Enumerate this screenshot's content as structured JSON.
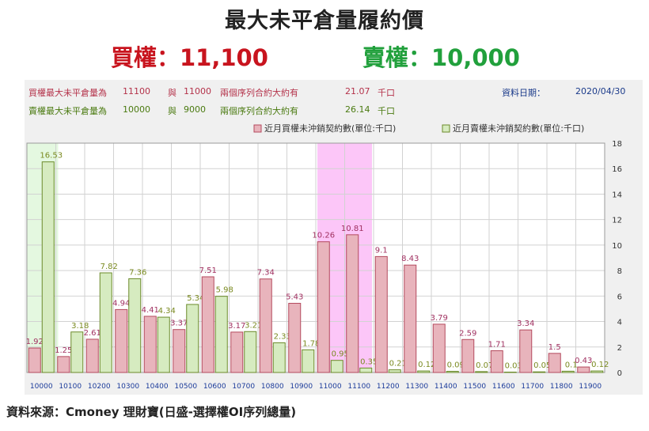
{
  "title": "最大未平倉量履約價",
  "call_max": "買權：11,100",
  "put_max": "賣權：10,000",
  "info": {
    "call_line": {
      "label": "買權最大未平倉量為",
      "strike1": "11100",
      "connector": "與",
      "strike2": "11000",
      "desc": "兩個序列合約大約有",
      "amount": "21.07",
      "unit": "千口"
    },
    "put_line": {
      "label": "賣權最大未平倉量為",
      "strike1": "10000",
      "connector": "與",
      "strike2": "9000",
      "desc": "兩個序列合約大約有",
      "amount": "26.14",
      "unit": "千口"
    },
    "date_label": "資料日期：",
    "date_value": "2020/04/30"
  },
  "source": "資料來源：Cmoney 理財寶(日盛-選擇權OI序列總量)",
  "colors": {
    "call_bar": "#e8b4bc",
    "call_stroke": "#b44a5e",
    "put_bar": "#d6ebc0",
    "put_stroke": "#6b8a2a",
    "call_label": "#a03060",
    "put_label": "#7a8a20",
    "highlight_green": "#e4f8e0",
    "highlight_pink": "#fcc6f8",
    "axis_label": "#1a3a9a"
  },
  "chart_data": {
    "type": "bar",
    "categories": [
      "10000",
      "10100",
      "10200",
      "10300",
      "10400",
      "10500",
      "10600",
      "10700",
      "10800",
      "10900",
      "11000",
      "11100",
      "11200",
      "11300",
      "11400",
      "11500",
      "11600",
      "11700",
      "11800",
      "11900"
    ],
    "series": [
      {
        "name": "近月買權未沖銷契約數(單位:千口)",
        "values": [
          1.92,
          1.25,
          2.61,
          4.94,
          4.41,
          3.37,
          7.51,
          3.17,
          7.34,
          5.43,
          10.26,
          10.81,
          9.1,
          8.43,
          3.79,
          2.59,
          1.71,
          3.34,
          1.5,
          0.43
        ],
        "labels": [
          "1.92",
          "1.25",
          "2.61",
          "4.94",
          "4.41",
          "3.37",
          "7.51",
          "3.17",
          "7.34",
          "5.43",
          "10.26",
          "10.81",
          "9.1",
          "8.43",
          "3.79",
          "2.59",
          "1.71",
          "3.34",
          "1.5",
          "0.43"
        ]
      },
      {
        "name": "近月賣權未沖銷契約數(單位:千口)",
        "values": [
          16.53,
          3.18,
          7.82,
          7.36,
          4.34,
          5.34,
          5.98,
          3.21,
          2.33,
          1.78,
          0.95,
          0.35,
          0.21,
          0.12,
          0.09,
          0.07,
          0.03,
          0.05,
          0.1,
          0.12
        ],
        "labels": [
          "16.53",
          "3.18",
          "7.82",
          "7.36",
          "4.34",
          "5.34",
          "5.98",
          "3.21",
          "2.33",
          "1.78",
          "0.95",
          "0.35",
          "0.21",
          "0.12",
          "0.09",
          "0.07",
          "0.03",
          "0.05",
          "0.1",
          "0.12"
        ]
      }
    ],
    "ylim": [
      0,
      18
    ],
    "yticks": [
      "0",
      "2",
      "4",
      "6",
      "8",
      "10",
      "12",
      "14",
      "16",
      "18"
    ],
    "y_axis_side": "right",
    "grid": true,
    "legend": "top",
    "highlight_categories": {
      "put_max": "10000",
      "call_max": "11100"
    }
  }
}
